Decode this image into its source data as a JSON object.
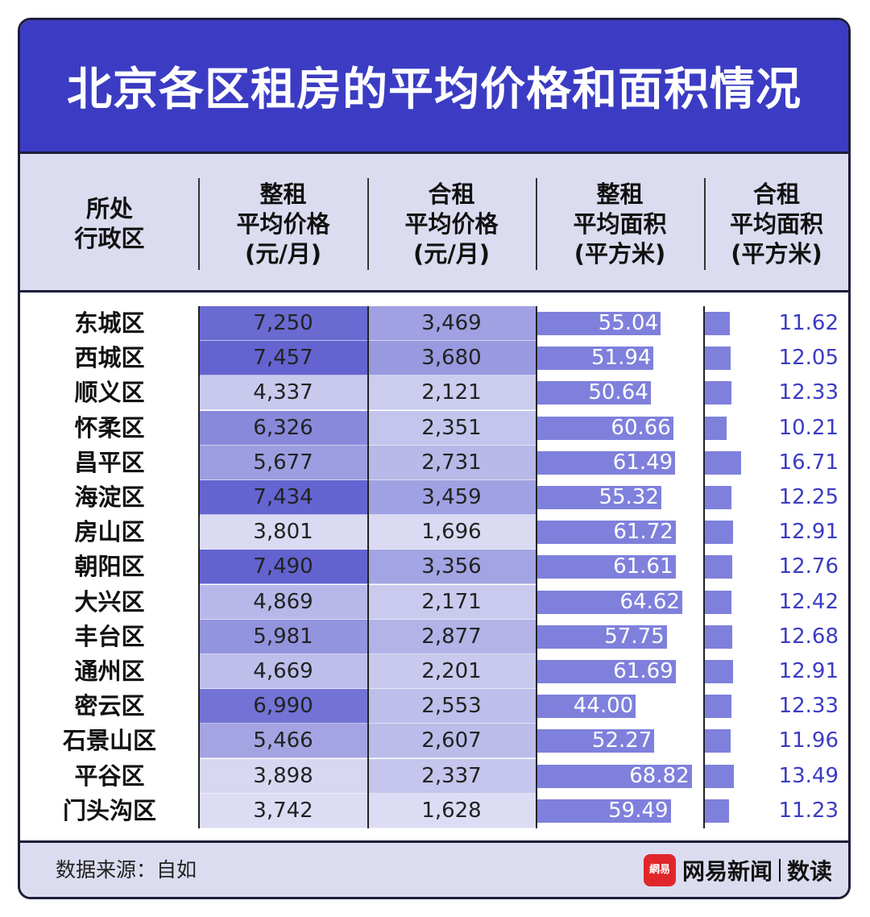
{
  "title": "北京各区租房的平均价格和面积情况",
  "headers": {
    "district": [
      "所处",
      "行政区"
    ],
    "whole_price": [
      "整租",
      "平均价格",
      "(元/月)"
    ],
    "shared_price": [
      "合租",
      "平均价格",
      "(元/月)"
    ],
    "whole_area": [
      "整租",
      "平均面积",
      "(平方米)"
    ],
    "shared_area": [
      "合租",
      "平均面积",
      "(平方米)"
    ]
  },
  "chart_data": {
    "type": "table",
    "columns": [
      "所处行政区",
      "整租平均价格(元/月)",
      "合租平均价格(元/月)",
      "整租平均面积(平方米)",
      "合租平均面积(平方米)"
    ],
    "rows": [
      {
        "district": "东城区",
        "whole_price": "7,250",
        "shared_price": "3,469",
        "whole_area": "55.04",
        "shared_area": "11.62"
      },
      {
        "district": "西城区",
        "whole_price": "7,457",
        "shared_price": "3,680",
        "whole_area": "51.94",
        "shared_area": "12.05"
      },
      {
        "district": "顺义区",
        "whole_price": "4,337",
        "shared_price": "2,121",
        "whole_area": "50.64",
        "shared_area": "12.33"
      },
      {
        "district": "怀柔区",
        "whole_price": "6,326",
        "shared_price": "2,351",
        "whole_area": "60.66",
        "shared_area": "10.21"
      },
      {
        "district": "昌平区",
        "whole_price": "5,677",
        "shared_price": "2,731",
        "whole_area": "61.49",
        "shared_area": "16.71"
      },
      {
        "district": "海淀区",
        "whole_price": "7,434",
        "shared_price": "3,459",
        "whole_area": "55.32",
        "shared_area": "12.25"
      },
      {
        "district": "房山区",
        "whole_price": "3,801",
        "shared_price": "1,696",
        "whole_area": "61.72",
        "shared_area": "12.91"
      },
      {
        "district": "朝阳区",
        "whole_price": "7,490",
        "shared_price": "3,356",
        "whole_area": "61.61",
        "shared_area": "12.76"
      },
      {
        "district": "大兴区",
        "whole_price": "4,869",
        "shared_price": "2,171",
        "whole_area": "64.62",
        "shared_area": "12.42"
      },
      {
        "district": "丰台区",
        "whole_price": "5,981",
        "shared_price": "2,877",
        "whole_area": "57.75",
        "shared_area": "12.68"
      },
      {
        "district": "通州区",
        "whole_price": "4,669",
        "shared_price": "2,201",
        "whole_area": "61.69",
        "shared_area": "12.91"
      },
      {
        "district": "密云区",
        "whole_price": "6,990",
        "shared_price": "2,553",
        "whole_area": "44.00",
        "shared_area": "12.33"
      },
      {
        "district": "石景山区",
        "whole_price": "5,466",
        "shared_price": "2,607",
        "whole_area": "52.27",
        "shared_area": "11.96"
      },
      {
        "district": "平谷区",
        "whole_price": "3,898",
        "shared_price": "2,337",
        "whole_area": "68.82",
        "shared_area": "13.49"
      },
      {
        "district": "门头沟区",
        "whole_price": "3,742",
        "shared_price": "1,628",
        "whole_area": "59.49",
        "shared_area": "11.23"
      }
    ]
  },
  "colors": {
    "header_bg": "#3b3cc3",
    "bar": "#7f80dc",
    "value_text": "#3b3cc3",
    "band_bg": "#dcdcf0",
    "heat_low": "#dcdcf4",
    "heat_high": "#6263cf"
  },
  "footer": {
    "source": "数据来源：自如",
    "logo_text": "網易",
    "brand": "网易新闻",
    "brand_sub": "数读"
  }
}
